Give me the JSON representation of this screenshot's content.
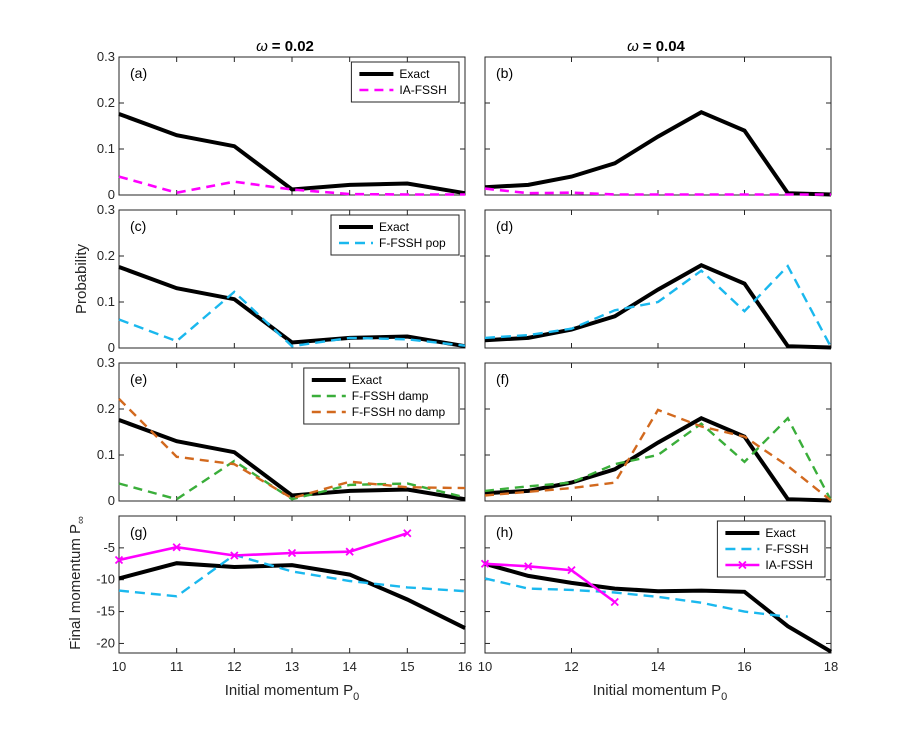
{
  "chart_data": {
    "type": "line",
    "column_titles": [
      {
        "omega_symbol": "ω",
        "text": "= 0.02"
      },
      {
        "omega_symbol": "ω",
        "text": "= 0.04"
      }
    ],
    "row_ylabels": [
      {
        "text": "Probability"
      },
      {
        "text": "Final momentum P",
        "sub": "∞"
      }
    ],
    "col_xlabels": [
      {
        "text": "Initial momentum P",
        "sub": "0"
      },
      {
        "text": "Initial momentum P",
        "sub": "0"
      }
    ],
    "colors": {
      "exact": "#000000",
      "magenta": "#ff00ff",
      "cyan": "#1ab8ee",
      "green": "#3aae3a",
      "orange": "#d2691e"
    },
    "panels": [
      {
        "tag": "(a)",
        "row": 0,
        "col": 0,
        "xlim": [
          10,
          16
        ],
        "ylim": [
          0,
          0.3
        ],
        "yticks": [
          "0",
          "0.1",
          "0.2",
          "0.3"
        ],
        "yticks_v": [
          0,
          0.1,
          0.2,
          0.3
        ],
        "show_xticklabels": false,
        "legend_rows": 2,
        "series": [
          {
            "name": "Exact",
            "style": "exact",
            "x": [
              10,
              11,
              12,
              13,
              14,
              15,
              16
            ],
            "y": [
              0.176,
              0.13,
              0.106,
              0.012,
              0.022,
              0.025,
              0.004
            ]
          },
          {
            "name": "IA-FSSH",
            "style": "magenta-dash",
            "x": [
              10,
              11,
              12,
              13,
              14,
              15,
              16
            ],
            "y": [
              0.04,
              0.005,
              0.029,
              0.012,
              0.002,
              0.001,
              0.001
            ]
          }
        ]
      },
      {
        "tag": "(b)",
        "row": 0,
        "col": 1,
        "xlim": [
          10,
          18
        ],
        "ylim": [
          0,
          0.3
        ],
        "yticks": [],
        "yticks_v": [
          0,
          0.1,
          0.2,
          0.3
        ],
        "show_xticklabels": false,
        "legend": false,
        "series": [
          {
            "name": "Exact",
            "style": "exact",
            "x": [
              10,
              11,
              12,
              13,
              14,
              15,
              16,
              17,
              18
            ],
            "y": [
              0.017,
              0.022,
              0.04,
              0.069,
              0.127,
              0.18,
              0.14,
              0.004,
              0.001
            ]
          },
          {
            "name": "IA-FSSH",
            "style": "magenta-dash",
            "x": [
              10,
              11,
              12,
              13,
              14,
              15,
              16,
              17,
              18
            ],
            "y": [
              0.014,
              0.004,
              0.005,
              0.001,
              0.001,
              0.001,
              0.001,
              0.001,
              0.001
            ]
          }
        ]
      },
      {
        "tag": "(c)",
        "row": 1,
        "col": 0,
        "xlim": [
          10,
          16
        ],
        "ylim": [
          0,
          0.3
        ],
        "yticks": [
          "0",
          "0.1",
          "0.2",
          "0.3"
        ],
        "yticks_v": [
          0,
          0.1,
          0.2,
          0.3
        ],
        "show_xticklabels": false,
        "legend_rows": 2,
        "series": [
          {
            "name": "Exact",
            "style": "exact",
            "x": [
              10,
              11,
              12,
              13,
              14,
              15,
              16
            ],
            "y": [
              0.176,
              0.13,
              0.106,
              0.012,
              0.022,
              0.025,
              0.004
            ]
          },
          {
            "name": "F-FSSH pop",
            "style": "cyan-dash",
            "x": [
              10,
              11,
              12,
              13,
              14,
              15,
              16
            ],
            "y": [
              0.062,
              0.015,
              0.122,
              0.004,
              0.022,
              0.019,
              0.005
            ]
          }
        ]
      },
      {
        "tag": "(d)",
        "row": 1,
        "col": 1,
        "xlim": [
          10,
          18
        ],
        "ylim": [
          0,
          0.3
        ],
        "yticks": [],
        "yticks_v": [
          0,
          0.1,
          0.2,
          0.3
        ],
        "show_xticklabels": false,
        "legend": false,
        "series": [
          {
            "name": "Exact",
            "style": "exact",
            "x": [
              10,
              11,
              12,
              13,
              14,
              15,
              16,
              17,
              18
            ],
            "y": [
              0.017,
              0.022,
              0.04,
              0.069,
              0.127,
              0.18,
              0.14,
              0.004,
              0.001
            ]
          },
          {
            "name": "F-FSSH pop",
            "style": "cyan-dash",
            "x": [
              10,
              11,
              12,
              13,
              14,
              15,
              16,
              17,
              18
            ],
            "y": [
              0.022,
              0.028,
              0.042,
              0.082,
              0.1,
              0.168,
              0.08,
              0.178,
              0.002
            ]
          }
        ]
      },
      {
        "tag": "(e)",
        "row": 2,
        "col": 0,
        "xlim": [
          10,
          16
        ],
        "ylim": [
          0,
          0.3
        ],
        "yticks": [
          "0",
          "0.1",
          "0.2",
          "0.3"
        ],
        "yticks_v": [
          0,
          0.1,
          0.2,
          0.3
        ],
        "show_xticklabels": false,
        "legend_rows": 3,
        "series": [
          {
            "name": "Exact",
            "style": "exact",
            "x": [
              10,
              11,
              12,
              13,
              14,
              15,
              16
            ],
            "y": [
              0.176,
              0.13,
              0.106,
              0.012,
              0.022,
              0.025,
              0.004
            ]
          },
          {
            "name": "F-FSSH damp",
            "style": "green-dash",
            "x": [
              10,
              11,
              12,
              13,
              14,
              15,
              16
            ],
            "y": [
              0.038,
              0.004,
              0.087,
              0.004,
              0.035,
              0.038,
              0.008
            ]
          },
          {
            "name": "F-FSSH no damp",
            "style": "orange-dash",
            "x": [
              10,
              11,
              12,
              13,
              14,
              15,
              16
            ],
            "y": [
              0.222,
              0.096,
              0.08,
              0.006,
              0.042,
              0.03,
              0.028
            ]
          }
        ]
      },
      {
        "tag": "(f)",
        "row": 2,
        "col": 1,
        "xlim": [
          10,
          18
        ],
        "ylim": [
          0,
          0.3
        ],
        "yticks": [],
        "yticks_v": [
          0,
          0.1,
          0.2,
          0.3
        ],
        "show_xticklabels": false,
        "legend": false,
        "series": [
          {
            "name": "Exact",
            "style": "exact",
            "x": [
              10,
              11,
              12,
              13,
              14,
              15,
              16,
              17,
              18
            ],
            "y": [
              0.017,
              0.022,
              0.04,
              0.069,
              0.127,
              0.18,
              0.14,
              0.004,
              0.001
            ]
          },
          {
            "name": "F-FSSH damp",
            "style": "green-dash",
            "x": [
              10,
              11,
              12,
              13,
              14,
              15,
              16,
              17,
              18
            ],
            "y": [
              0.022,
              0.032,
              0.04,
              0.08,
              0.1,
              0.168,
              0.085,
              0.18,
              0.001
            ]
          },
          {
            "name": "F-FSSH no damp",
            "style": "orange-dash",
            "x": [
              10,
              11,
              12,
              13,
              14,
              15,
              16,
              17,
              18
            ],
            "y": [
              0.012,
              0.02,
              0.028,
              0.04,
              0.198,
              0.162,
              0.14,
              0.076,
              0.001
            ]
          }
        ]
      },
      {
        "tag": "(g)",
        "row": 3,
        "col": 0,
        "xlim": [
          10,
          16
        ],
        "ylim": [
          -21.5,
          0
        ],
        "yticks": [
          "-5",
          "-10",
          "-15",
          "-20"
        ],
        "yticks_v": [
          -5,
          -10,
          -15,
          -20
        ],
        "xticks": [
          "10",
          "11",
          "12",
          "13",
          "14",
          "15",
          "16"
        ],
        "xticks_v": [
          10,
          11,
          12,
          13,
          14,
          15,
          16
        ],
        "show_xticklabels": true,
        "legend": false,
        "series": [
          {
            "name": "Exact",
            "style": "exact",
            "x": [
              10,
              11,
              12,
              13,
              14,
              15,
              16
            ],
            "y": [
              -9.8,
              -7.4,
              -8.0,
              -7.7,
              -9.2,
              -13.1,
              -17.6
            ]
          },
          {
            "name": "F-FSSH",
            "style": "cyan-dash",
            "x": [
              10,
              11,
              12,
              13,
              14,
              15,
              16
            ],
            "y": [
              -11.7,
              -12.6,
              -6.1,
              -8.7,
              -10.2,
              -11.2,
              -11.8
            ]
          },
          {
            "name": "IA-FSSH",
            "style": "magenta-x",
            "x": [
              10,
              11,
              12,
              13,
              14,
              15
            ],
            "y": [
              -6.9,
              -4.9,
              -6.2,
              -5.8,
              -5.6,
              -2.7
            ]
          }
        ]
      },
      {
        "tag": "(h)",
        "row": 3,
        "col": 1,
        "xlim": [
          10,
          18
        ],
        "ylim": [
          -21.5,
          0
        ],
        "yticks": [],
        "yticks_v": [
          -5,
          -10,
          -15,
          -20
        ],
        "xticks": [
          "10",
          "12",
          "14",
          "16",
          "18"
        ],
        "xticks_v": [
          10,
          12,
          14,
          16,
          18
        ],
        "show_xticklabels": true,
        "legend_rows": 3,
        "series": [
          {
            "name": "Exact",
            "style": "exact",
            "x": [
              10,
              11,
              12,
              13,
              14,
              15,
              16,
              17,
              18
            ],
            "y": [
              -7.5,
              -9.4,
              -10.5,
              -11.4,
              -11.8,
              -11.7,
              -11.9,
              -17.3,
              -21.3
            ]
          },
          {
            "name": "F-FSSH",
            "style": "cyan-dash",
            "x": [
              10,
              11,
              12,
              13,
              14,
              15,
              16,
              17
            ],
            "y": [
              -9.8,
              -11.4,
              -11.6,
              -12.0,
              -12.7,
              -13.6,
              -15.0,
              -15.8
            ]
          },
          {
            "name": "IA-FSSH",
            "style": "magenta-x",
            "x": [
              10,
              11,
              12,
              13
            ],
            "y": [
              -7.5,
              -7.9,
              -8.5,
              -13.5
            ]
          }
        ]
      }
    ]
  }
}
